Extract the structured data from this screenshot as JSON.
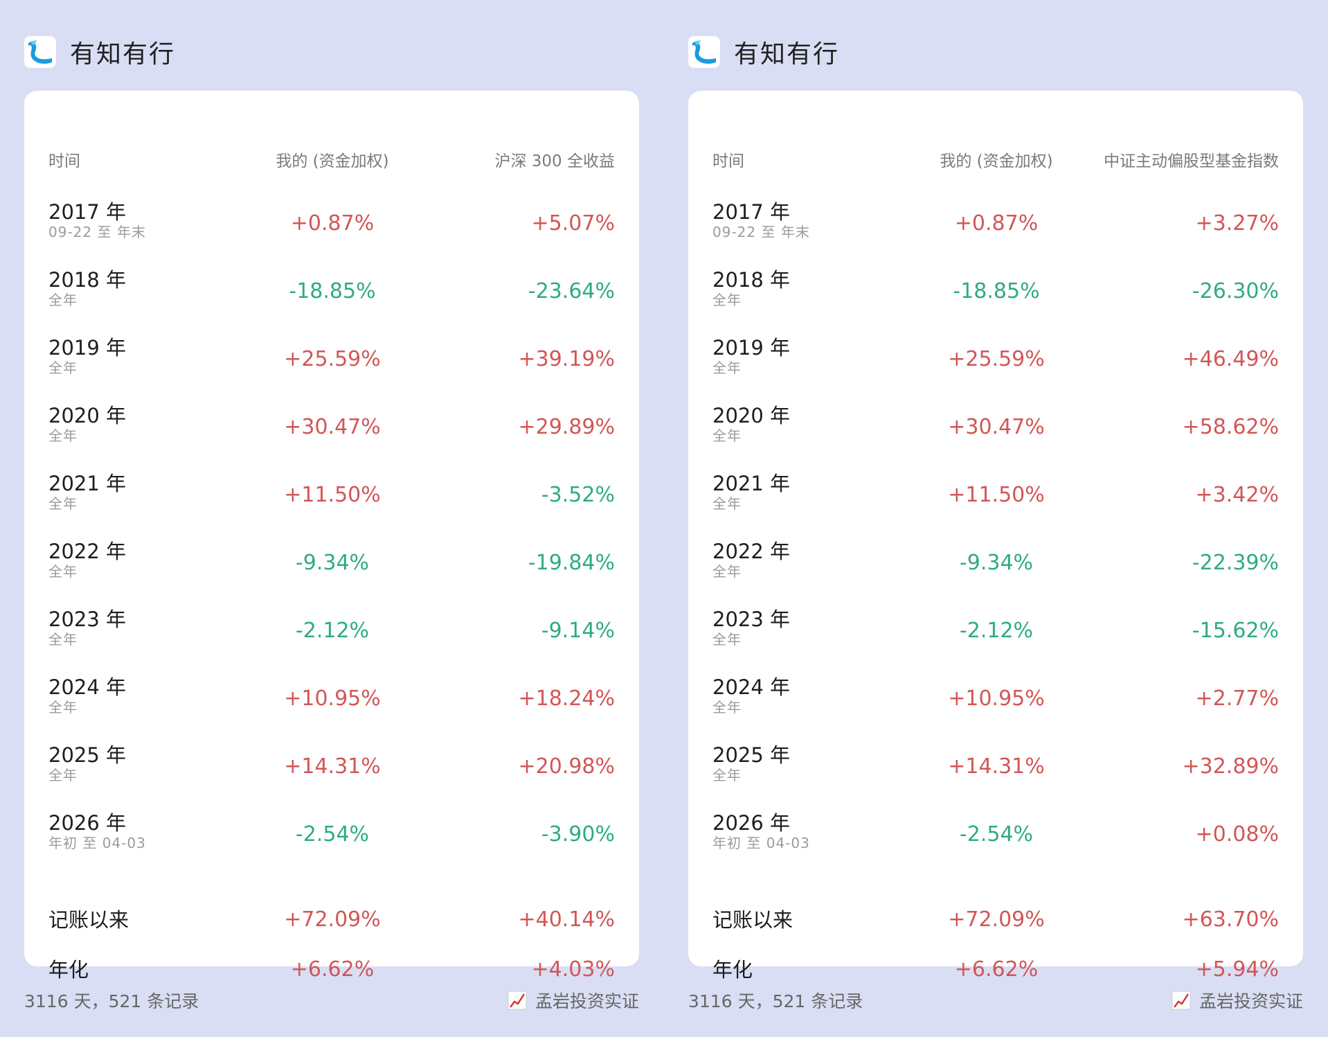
{
  "colors": {
    "positive": "#d25656",
    "negative": "#2eac80",
    "background": "#d9def4"
  },
  "panels": [
    {
      "app_name": "有知有行",
      "headers": {
        "time": "时间",
        "mine": "我的 (资金加权)",
        "benchmark": "沪深 300 全收益"
      },
      "rows": [
        {
          "year": "2017 年",
          "sub": "09-22 至 年末",
          "mine": "+0.87%",
          "bench": "+5.07%"
        },
        {
          "year": "2018 年",
          "sub": "全年",
          "mine": "-18.85%",
          "bench": "-23.64%"
        },
        {
          "year": "2019 年",
          "sub": "全年",
          "mine": "+25.59%",
          "bench": "+39.19%"
        },
        {
          "year": "2020 年",
          "sub": "全年",
          "mine": "+30.47%",
          "bench": "+29.89%"
        },
        {
          "year": "2021 年",
          "sub": "全年",
          "mine": "+11.50%",
          "bench": "-3.52%"
        },
        {
          "year": "2022 年",
          "sub": "全年",
          "mine": "-9.34%",
          "bench": "-19.84%"
        },
        {
          "year": "2023 年",
          "sub": "全年",
          "mine": "-2.12%",
          "bench": "-9.14%"
        },
        {
          "year": "2024 年",
          "sub": "全年",
          "mine": "+10.95%",
          "bench": "+18.24%"
        },
        {
          "year": "2025 年",
          "sub": "全年",
          "mine": "+14.31%",
          "bench": "+20.98%"
        },
        {
          "year": "2026 年",
          "sub": "年初 至 04-03",
          "mine": "-2.54%",
          "bench": "-3.90%"
        },
        {
          "year": "记账以来",
          "sub": "",
          "mine": "+72.09%",
          "bench": "+40.14%"
        },
        {
          "year": "年化",
          "sub": "",
          "mine": "+6.62%",
          "bench": "+4.03%"
        }
      ],
      "footer": {
        "count": "3116 天，521 条记录",
        "credit": "孟岩投资实证"
      }
    },
    {
      "app_name": "有知有行",
      "headers": {
        "time": "时间",
        "mine": "我的 (资金加权)",
        "benchmark": "中证主动偏股型基金指数"
      },
      "rows": [
        {
          "year": "2017 年",
          "sub": "09-22 至 年末",
          "mine": "+0.87%",
          "bench": "+3.27%"
        },
        {
          "year": "2018 年",
          "sub": "全年",
          "mine": "-18.85%",
          "bench": "-26.30%"
        },
        {
          "year": "2019 年",
          "sub": "全年",
          "mine": "+25.59%",
          "bench": "+46.49%"
        },
        {
          "year": "2020 年",
          "sub": "全年",
          "mine": "+30.47%",
          "bench": "+58.62%"
        },
        {
          "year": "2021 年",
          "sub": "全年",
          "mine": "+11.50%",
          "bench": "+3.42%"
        },
        {
          "year": "2022 年",
          "sub": "全年",
          "mine": "-9.34%",
          "bench": "-22.39%"
        },
        {
          "year": "2023 年",
          "sub": "全年",
          "mine": "-2.12%",
          "bench": "-15.62%"
        },
        {
          "year": "2024 年",
          "sub": "全年",
          "mine": "+10.95%",
          "bench": "+2.77%"
        },
        {
          "year": "2025 年",
          "sub": "全年",
          "mine": "+14.31%",
          "bench": "+32.89%"
        },
        {
          "year": "2026 年",
          "sub": "年初 至 04-03",
          "mine": "-2.54%",
          "bench": "+0.08%"
        },
        {
          "year": "记账以来",
          "sub": "",
          "mine": "+72.09%",
          "bench": "+63.70%"
        },
        {
          "year": "年化",
          "sub": "",
          "mine": "+6.62%",
          "bench": "+5.94%"
        }
      ],
      "footer": {
        "count": "3116 天，521 条记录",
        "credit": "孟岩投资实证"
      }
    }
  ]
}
